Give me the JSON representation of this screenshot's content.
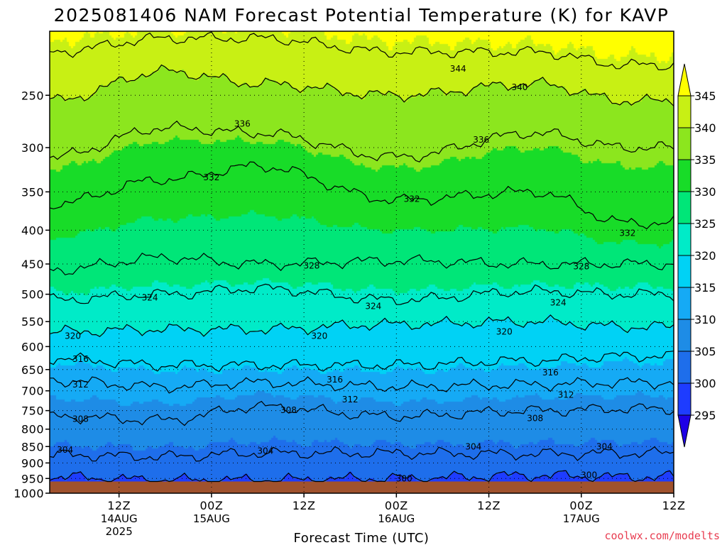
{
  "chart_data": {
    "type": "heatmap",
    "title": "2025081406 NAM Forecast Potential Temperature (K) for KAVP",
    "xlabel": "Forecast Time (UTC)",
    "ylabel": "",
    "credit": "coolwx.com/modelts",
    "y_axis": {
      "ticks": [
        250,
        300,
        350,
        400,
        450,
        500,
        550,
        600,
        650,
        700,
        750,
        800,
        850,
        900,
        950,
        1000
      ],
      "range": [
        1000,
        200
      ],
      "scale": "log-pressure"
    },
    "x_axis": {
      "range_hours": [
        -3,
        78
      ],
      "ticks": [
        {
          "label": "12Z",
          "date": "14AUG",
          "year": "2025"
        },
        {
          "label": "00Z",
          "date": "15AUG",
          "year": ""
        },
        {
          "label": "12Z",
          "date": "",
          "year": ""
        },
        {
          "label": "00Z",
          "date": "16AUG",
          "year": ""
        },
        {
          "label": "12Z",
          "date": "",
          "year": ""
        },
        {
          "label": "00Z",
          "date": "17AUG",
          "year": ""
        },
        {
          "label": "12Z",
          "date": "",
          "year": ""
        }
      ],
      "tick_hours": [
        6,
        18,
        30,
        42,
        54,
        66,
        78
      ]
    },
    "grid": "dotted",
    "colorbar": {
      "levels": [
        295,
        300,
        305,
        310,
        315,
        320,
        325,
        330,
        335,
        340,
        345
      ],
      "colors": [
        "#1e00e6",
        "#1e3cff",
        "#1e6eeb",
        "#1e8ce6",
        "#15aaf5",
        "#00d2f5",
        "#00ebc8",
        "#00e678",
        "#18dc28",
        "#8ce61e",
        "#c8f014",
        "#ffff00"
      ]
    },
    "series": [
      {
        "theta": 300,
        "pressures": {
          "-3": 945,
          "12": 955,
          "24": 955,
          "42": 950,
          "60": 940,
          "72": 945
        }
      },
      {
        "theta": 304,
        "pressures": {
          "-3": 875,
          "12": 880,
          "24": 870,
          "42": 870,
          "60": 872,
          "72": 870
        }
      },
      {
        "theta": 308,
        "pressures": {
          "-3": 765,
          "12": 775,
          "24": 740,
          "42": 765,
          "60": 750,
          "72": 745
        }
      },
      {
        "theta": 312,
        "pressures": {
          "-3": 675,
          "12": 690,
          "24": 680,
          "42": 690,
          "60": 685,
          "72": 680
        }
      },
      {
        "theta": 316,
        "pressures": {
          "-3": 625,
          "12": 640,
          "24": 640,
          "42": 640,
          "60": 630,
          "72": 620
        }
      },
      {
        "theta": 320,
        "pressures": {
          "-3": 570,
          "12": 565,
          "24": 565,
          "42": 555,
          "60": 550,
          "72": 560
        }
      },
      {
        "theta": 324,
        "pressures": {
          "-3": 510,
          "12": 500,
          "24": 490,
          "42": 510,
          "60": 495,
          "72": 500
        }
      },
      {
        "theta": 328,
        "pressures": {
          "-3": 460,
          "12": 440,
          "24": 450,
          "42": 445,
          "60": 450,
          "72": 450
        }
      },
      {
        "theta": 332,
        "pressures": {
          "-3": 365,
          "12": 335,
          "24": 320,
          "42": 360,
          "60": 350,
          "72": 390
        }
      },
      {
        "theta": 336,
        "pressures": {
          "-3": 310,
          "12": 280,
          "24": 285,
          "42": 310,
          "60": 285,
          "72": 300
        }
      },
      {
        "theta": 340,
        "pressures": {
          "-3": 255,
          "12": 230,
          "24": 240,
          "42": 250,
          "60": 240,
          "72": 255
        }
      },
      {
        "theta": 344,
        "pressures": {
          "-3": 215,
          "12": 205,
          "24": 205,
          "42": 215,
          "60": 215,
          "72": 225
        }
      }
    ],
    "contour_labels": [
      {
        "value": 344,
        "hour": 50,
        "pressure": 228
      },
      {
        "value": 340,
        "hour": 58,
        "pressure": 243
      },
      {
        "value": 336,
        "hour": 22,
        "pressure": 276
      },
      {
        "value": 336,
        "hour": 53,
        "pressure": 292
      },
      {
        "value": 332,
        "hour": 18,
        "pressure": 333
      },
      {
        "value": 332,
        "hour": 44,
        "pressure": 359
      },
      {
        "value": 332,
        "hour": 72,
        "pressure": 404
      },
      {
        "value": 328,
        "hour": 31,
        "pressure": 453
      },
      {
        "value": 328,
        "hour": 66,
        "pressure": 454
      },
      {
        "value": 324,
        "hour": 10,
        "pressure": 506
      },
      {
        "value": 324,
        "hour": 39,
        "pressure": 521
      },
      {
        "value": 324,
        "hour": 63,
        "pressure": 515
      },
      {
        "value": 320,
        "hour": 0,
        "pressure": 578
      },
      {
        "value": 320,
        "hour": 32,
        "pressure": 578
      },
      {
        "value": 320,
        "hour": 56,
        "pressure": 570
      },
      {
        "value": 316,
        "hour": 1,
        "pressure": 627
      },
      {
        "value": 316,
        "hour": 34,
        "pressure": 673
      },
      {
        "value": 316,
        "hour": 62,
        "pressure": 657
      },
      {
        "value": 312,
        "hour": 1,
        "pressure": 685
      },
      {
        "value": 312,
        "hour": 36,
        "pressure": 722
      },
      {
        "value": 312,
        "hour": 64,
        "pressure": 710
      },
      {
        "value": 308,
        "hour": 1,
        "pressure": 772
      },
      {
        "value": 308,
        "hour": 28,
        "pressure": 749
      },
      {
        "value": 308,
        "hour": 60,
        "pressure": 770
      },
      {
        "value": 304,
        "hour": -1,
        "pressure": 860
      },
      {
        "value": 304,
        "hour": 25,
        "pressure": 863
      },
      {
        "value": 304,
        "hour": 52,
        "pressure": 850
      },
      {
        "value": 304,
        "hour": 69,
        "pressure": 850
      },
      {
        "value": 300,
        "hour": 43,
        "pressure": 950
      },
      {
        "value": 300,
        "hour": 67,
        "pressure": 939
      }
    ],
    "ground_pressure": 960,
    "ground_color": "#a0522d"
  }
}
